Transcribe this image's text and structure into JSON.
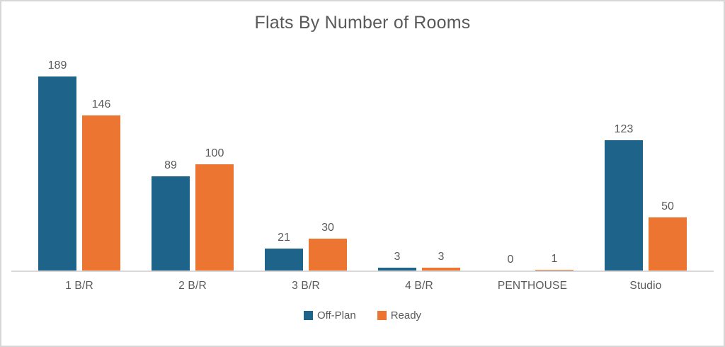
{
  "chart_data": {
    "type": "bar",
    "title": "Flats By Number of Rooms",
    "categories": [
      "1 B/R",
      "2 B/R",
      "3 B/R",
      "4 B/R",
      "PENTHOUSE",
      "Studio"
    ],
    "series": [
      {
        "name": "Off-Plan",
        "color": "#1e6389",
        "values": [
          189,
          89,
          21,
          3,
          0,
          123
        ]
      },
      {
        "name": "Ready",
        "color": "#eb7531",
        "values": [
          146,
          100,
          30,
          3,
          1,
          50
        ]
      }
    ],
    "ylim": [
      0,
      200
    ],
    "grid": false,
    "data_labels": true,
    "legend_position": "bottom",
    "xlabel": "",
    "ylabel": "",
    "colors": {
      "title_text": "#595959",
      "label_text": "#595959",
      "axis_line": "#d9d9d9",
      "frame_border": "#d7d7d7",
      "background": "#ffffff"
    }
  }
}
